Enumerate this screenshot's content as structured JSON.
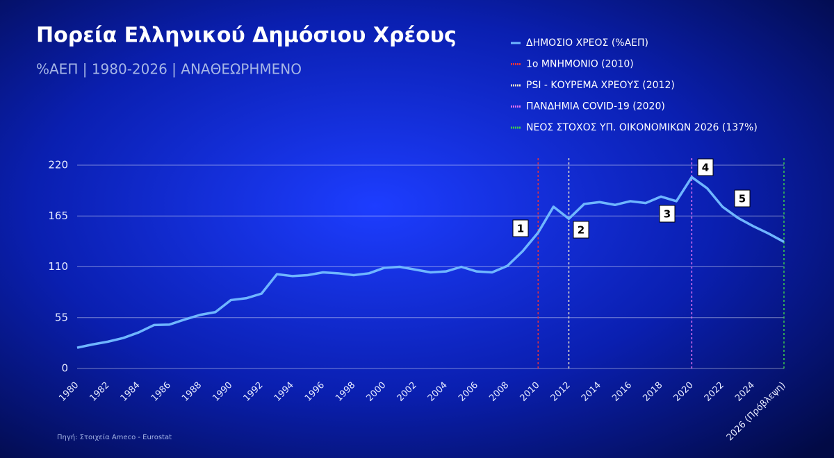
{
  "chart_data": {
    "type": "line",
    "title": "Πορεία Ελληνικού Δημόσιου Χρέους",
    "subtitle": "%ΑΕΠ | 1980-2026 | ΑΝΑΘΕΩΡΗΜΕΝΟ",
    "source": "Πηγή: Στοιχεία Ameco - Eurostat",
    "categories": [
      "1980",
      null,
      "1982",
      null,
      "1984",
      null,
      "1986",
      null,
      "1988",
      null,
      "1990",
      null,
      "1992",
      null,
      "1994",
      null,
      "1996",
      null,
      "1998",
      null,
      "2000",
      null,
      "2002",
      null,
      "2004",
      null,
      "2006",
      null,
      "2008",
      null,
      "2010",
      null,
      "2012",
      null,
      "2014",
      null,
      "2016",
      null,
      "2018",
      null,
      "2020",
      null,
      "2022",
      null,
      "2024",
      null,
      "2026 (Πρόβλεψη)"
    ],
    "series": [
      {
        "name": "ΔΗΜΟΣΙΟ ΧΡΕΟΣ (%ΑΕΠ)",
        "color": "#6fb6ff",
        "values": [
          22.5,
          26,
          29,
          33,
          39,
          47,
          47.5,
          53,
          58,
          61,
          74,
          76,
          81,
          102,
          100,
          101,
          104,
          103,
          101,
          103,
          109,
          110,
          107,
          104,
          105,
          110,
          105,
          104,
          111,
          127,
          147,
          175,
          162,
          178,
          180,
          177,
          181,
          179,
          186,
          181,
          207,
          195,
          175,
          163,
          154,
          146,
          137
        ]
      }
    ],
    "events": [
      {
        "name": "1ο ΜΝΗΜΟΝΙΟ (2010)",
        "color": "#e8323c",
        "year": 2010
      },
      {
        "name": "PSI - ΚΟΥΡΕΜΑ ΧΡΕΟΥΣ (2012)",
        "color": "#f3e6c8",
        "year": 2012
      },
      {
        "name": "ΠΑΝΔΗΜΙΑ COVID-19 (2020)",
        "color": "#e070f0",
        "year": 2020
      },
      {
        "name": "ΝΕΟΣ ΣΤΟΧΟΣ ΥΠ. ΟΙΚΟΝΟΜΙΚΩΝ 2026 (137%)",
        "color": "#3ecf4a",
        "year": 2026
      }
    ],
    "annotations": [
      "1",
      "2",
      "3",
      "4",
      "5"
    ],
    "ylim": [
      0,
      220
    ],
    "yticks": [
      0,
      55,
      110,
      165,
      220
    ],
    "grid": true
  }
}
